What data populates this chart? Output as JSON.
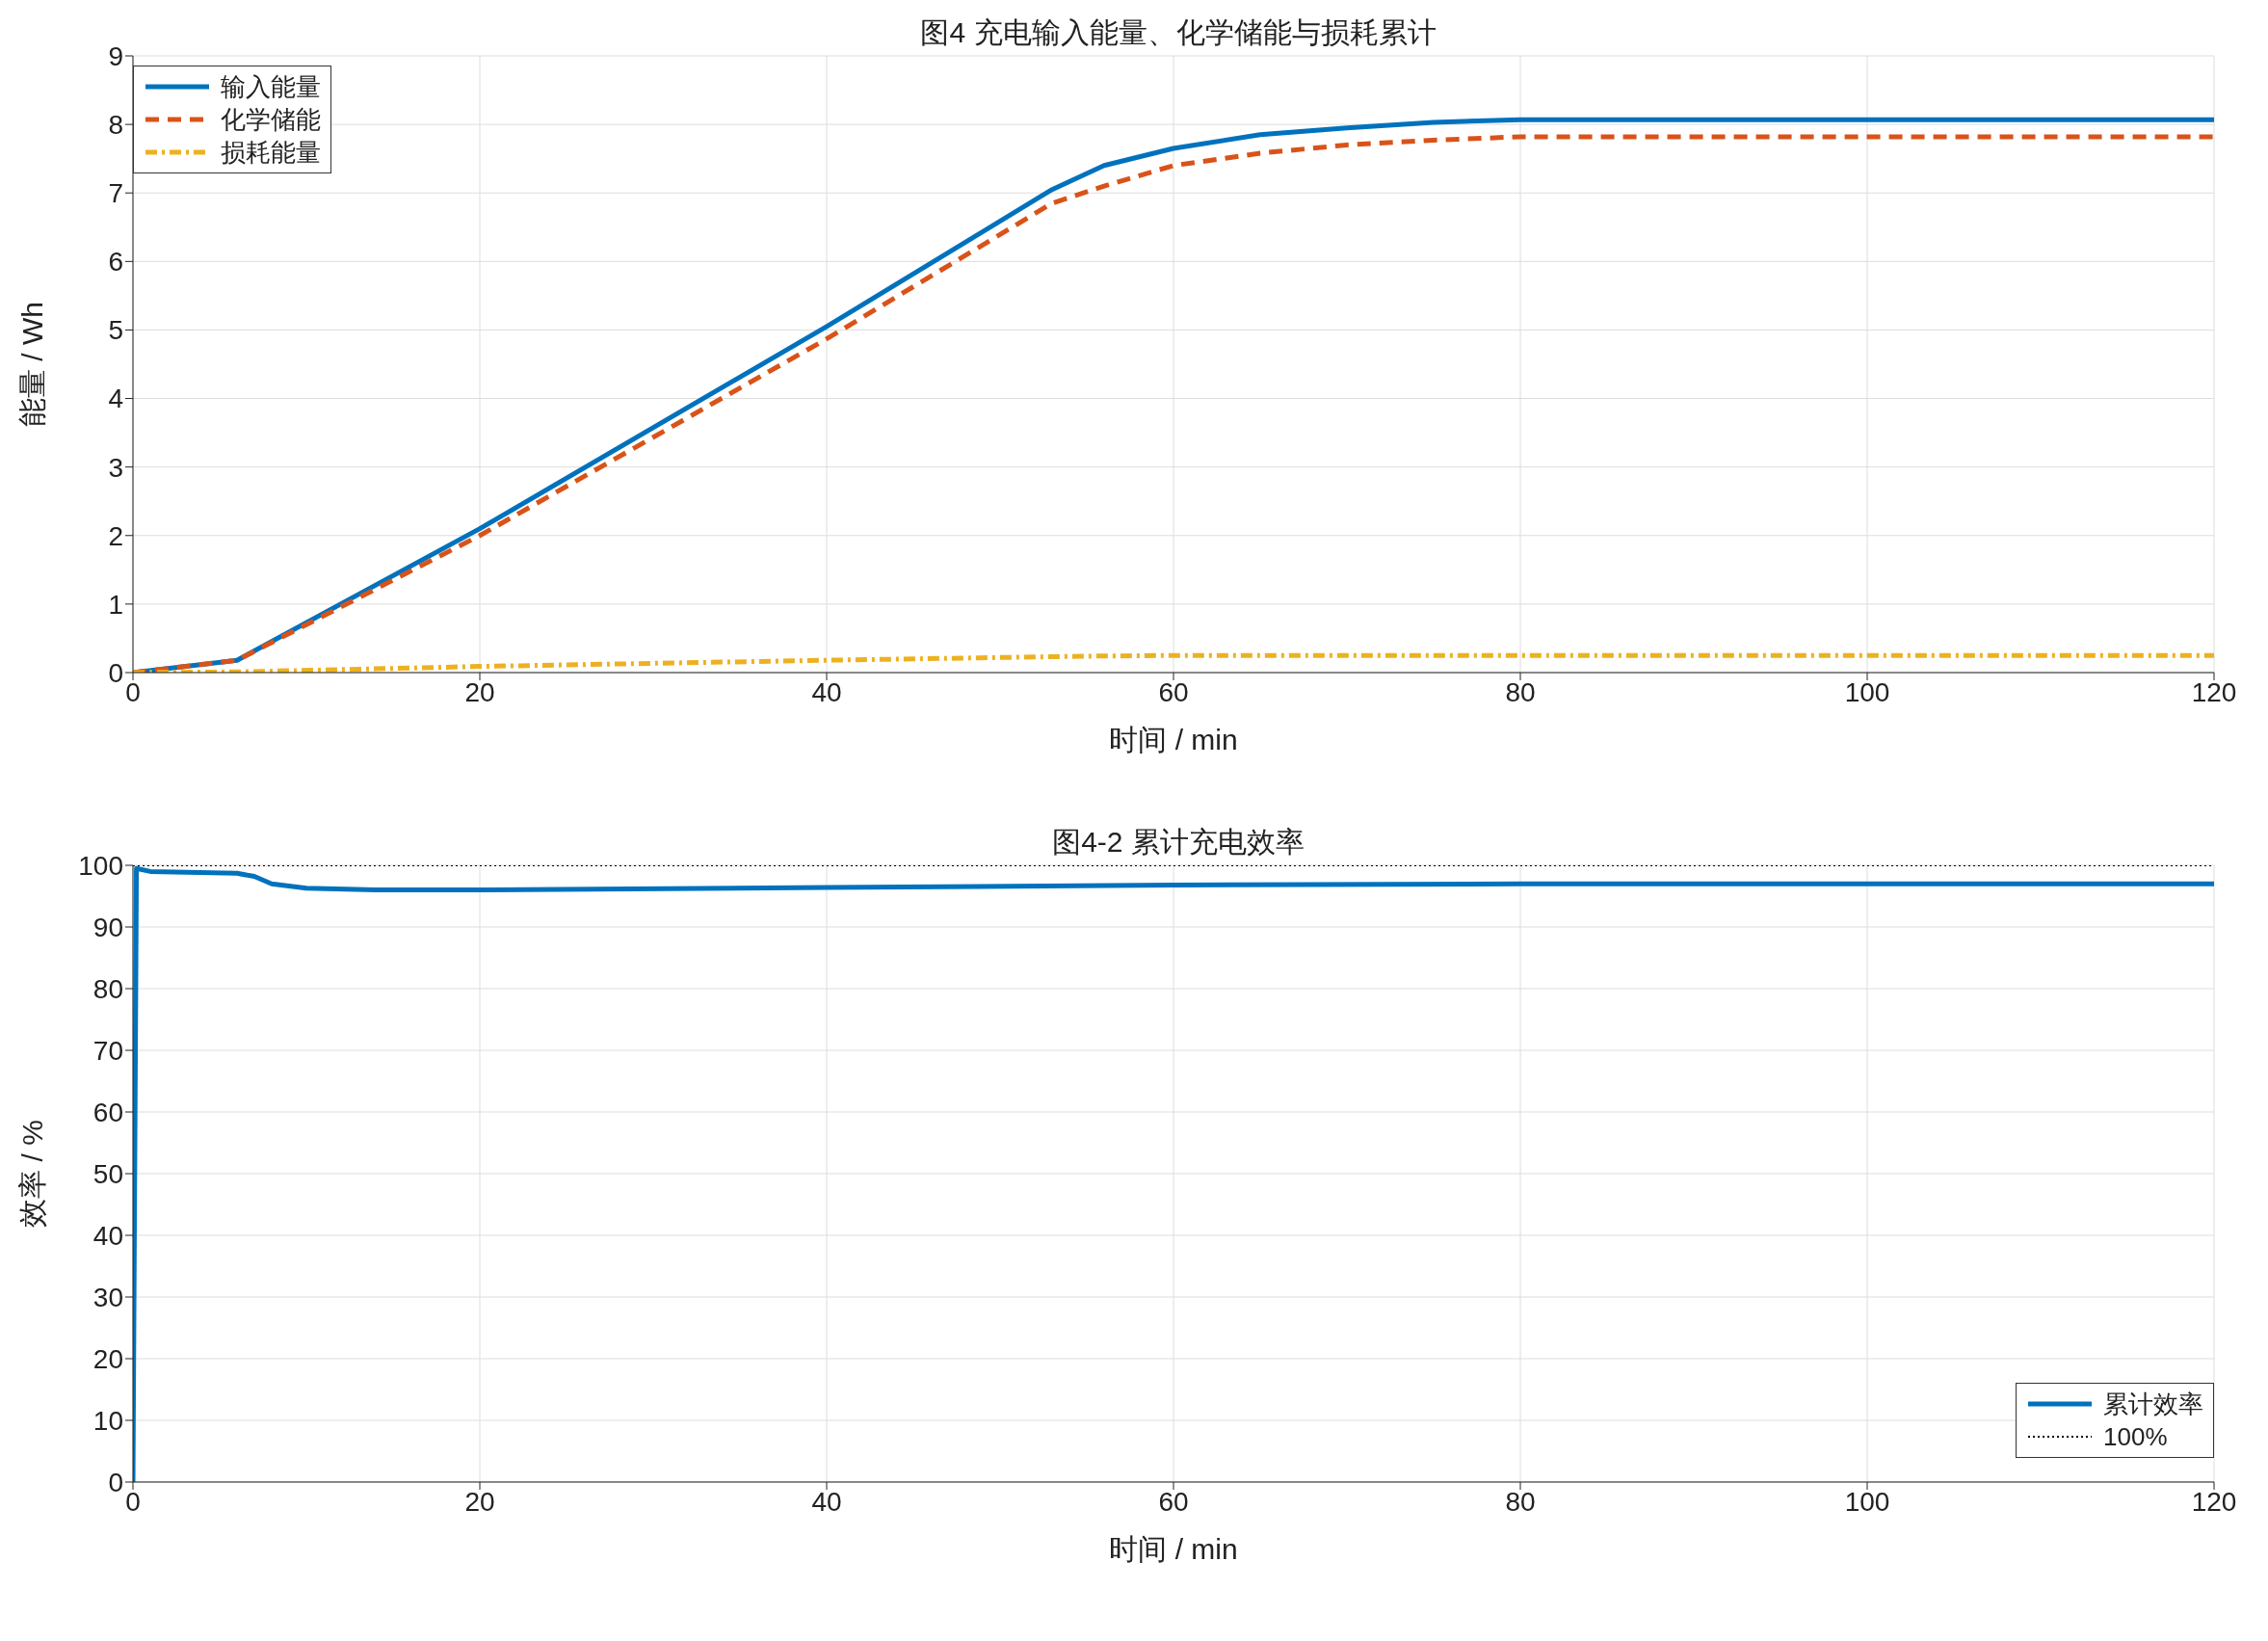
{
  "chart_data": [
    {
      "type": "line",
      "title": "图4 充电输入能量、化学储能与损耗累计",
      "xlabel": "时间 / min",
      "ylabel": "能量 / Wh",
      "xlim": [
        0,
        120
      ],
      "xticks": [
        0,
        20,
        40,
        60,
        80,
        100,
        120
      ],
      "ylim": [
        0,
        9
      ],
      "yticks": [
        0,
        1,
        2,
        3,
        4,
        5,
        6,
        7,
        8,
        9
      ],
      "grid": true,
      "legend": "top left",
      "marker": "none",
      "series": [
        {
          "name": "输入能量",
          "color": "#0072bd",
          "line_style": "solid",
          "x": [
            0,
            6,
            20,
            40,
            53,
            56,
            60,
            65,
            70,
            75,
            80,
            120
          ],
          "values": [
            0,
            0.18,
            2.1,
            5.05,
            7.05,
            7.4,
            7.65,
            7.85,
            7.95,
            8.03,
            8.07,
            8.07
          ]
        },
        {
          "name": "化学储能",
          "color": "#d95319",
          "line_style": "dashed",
          "x": [
            0,
            6,
            20,
            40,
            53,
            56,
            60,
            65,
            70,
            75,
            80,
            120
          ],
          "values": [
            0,
            0.18,
            2.0,
            4.87,
            6.85,
            7.1,
            7.4,
            7.58,
            7.7,
            7.77,
            7.82,
            7.82
          ]
        },
        {
          "name": "损耗能量",
          "color": "#edb120",
          "line_style": "dashdot",
          "x": [
            0,
            6,
            20,
            40,
            55,
            60,
            120
          ],
          "values": [
            0,
            0.01,
            0.09,
            0.18,
            0.24,
            0.25,
            0.25
          ]
        }
      ]
    },
    {
      "type": "line",
      "title": "图4-2 累计充电效率",
      "xlabel": "时间 / min",
      "ylabel": "效率 / %",
      "xlim": [
        0,
        120
      ],
      "xticks": [
        0,
        20,
        40,
        60,
        80,
        100,
        120
      ],
      "ylim": [
        0,
        100
      ],
      "yticks": [
        0,
        10,
        20,
        30,
        40,
        50,
        60,
        70,
        80,
        90,
        100
      ],
      "grid": true,
      "legend": "bottom right",
      "marker": "none",
      "series": [
        {
          "name": "累计效率",
          "color": "#0072bd",
          "line_style": "solid",
          "x": [
            0,
            0.2,
            1,
            6,
            7,
            8,
            10,
            14,
            20,
            40,
            60,
            80,
            120
          ],
          "values": [
            0,
            99.5,
            99,
            98.7,
            98.2,
            97,
            96.3,
            96,
            96,
            96.4,
            96.8,
            97,
            97
          ]
        },
        {
          "name": "100%",
          "color": "#000000",
          "line_style": "dotted",
          "x": [
            0,
            120
          ],
          "values": [
            100,
            100
          ]
        }
      ]
    }
  ]
}
